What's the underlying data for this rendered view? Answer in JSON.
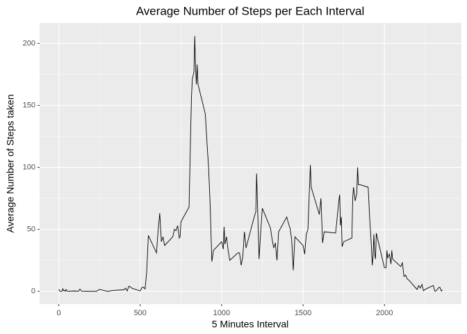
{
  "chart_data": {
    "type": "line",
    "title": "Average Number of Steps per Each Interval",
    "x_label": "5 Minutes Interval",
    "y_label": "Average Number of Steps taken",
    "color": "#000000",
    "grid": true,
    "minor_grid": true,
    "xlim": [
      -117.75,
      2472.75
    ],
    "ylim": [
      -10.3,
      216.5
    ],
    "xticks": [
      0,
      500,
      1000,
      1500,
      2000
    ],
    "yticks": [
      0,
      50,
      100,
      150,
      200
    ],
    "x": [
      0,
      5,
      10,
      15,
      20,
      25,
      30,
      35,
      40,
      45,
      50,
      55,
      100,
      110,
      120,
      130,
      140,
      200,
      230,
      250,
      300,
      330,
      400,
      410,
      420,
      430,
      440,
      450,
      500,
      510,
      520,
      530,
      540,
      550,
      600,
      610,
      620,
      630,
      640,
      650,
      700,
      710,
      720,
      730,
      740,
      745,
      750,
      800,
      810,
      815,
      820,
      830,
      835,
      840,
      845,
      850,
      855,
      900,
      910,
      920,
      930,
      940,
      950,
      1000,
      1010,
      1015,
      1020,
      1030,
      1040,
      1050,
      1100,
      1110,
      1120,
      1130,
      1140,
      1150,
      1200,
      1210,
      1215,
      1230,
      1240,
      1250,
      1300,
      1310,
      1320,
      1330,
      1340,
      1350,
      1400,
      1410,
      1420,
      1430,
      1440,
      1450,
      1500,
      1510,
      1520,
      1530,
      1540,
      1545,
      1550,
      1600,
      1610,
      1620,
      1630,
      1700,
      1710,
      1720,
      1725,
      1730,
      1735,
      1740,
      1750,
      1800,
      1805,
      1810,
      1820,
      1830,
      1835,
      1840,
      1850,
      1900,
      1910,
      1920,
      1925,
      1930,
      1935,
      1940,
      1945,
      1950,
      1955,
      2000,
      2010,
      2015,
      2020,
      2030,
      2040,
      2045,
      2050,
      2100,
      2110,
      2120,
      2130,
      2140,
      2150,
      2200,
      2210,
      2220,
      2230,
      2240,
      2250,
      2300,
      2310,
      2320,
      2330,
      2340,
      2350,
      2355
    ],
    "values": [
      1.7,
      0.3,
      0.1,
      0.2,
      0.1,
      2.1,
      0.5,
      0.9,
      0,
      1.5,
      0.3,
      0.1,
      0.3,
      0.2,
      0,
      1.8,
      0.2,
      0,
      0,
      1.5,
      0,
      0.7,
      1.2,
      2.6,
      0.3,
      4.1,
      3.5,
      2.5,
      0.3,
      3.0,
      3.3,
      2.0,
      16,
      45,
      31,
      49,
      63,
      40,
      44,
      37,
      44,
      50,
      49,
      53,
      43,
      44,
      56,
      68,
      130,
      157,
      171,
      177,
      206,
      180,
      167,
      183,
      167,
      143,
      120,
      100,
      68,
      24,
      33,
      40,
      34,
      52,
      38,
      44,
      33,
      25,
      31,
      31,
      21,
      28,
      48,
      35,
      60,
      64,
      95,
      26,
      48,
      67,
      51,
      42,
      35,
      39,
      25,
      48,
      60,
      55,
      51,
      42,
      17,
      44,
      37,
      30,
      46,
      50,
      85,
      102,
      84,
      62,
      75,
      39,
      48,
      47,
      60,
      73,
      78,
      53,
      60,
      36,
      40,
      43,
      75,
      84,
      73,
      79,
      100,
      86,
      86,
      84,
      57,
      36,
      21,
      28,
      46,
      30,
      26,
      47,
      44,
      19,
      19,
      33,
      27,
      30,
      22,
      33,
      26,
      20,
      23,
      12,
      13,
      10,
      9,
      1.5,
      4.6,
      2.7,
      5.5,
      0.4,
      1.6,
      4.7,
      0,
      0.7,
      2.6,
      3.3,
      0.2,
      1.1
    ]
  }
}
